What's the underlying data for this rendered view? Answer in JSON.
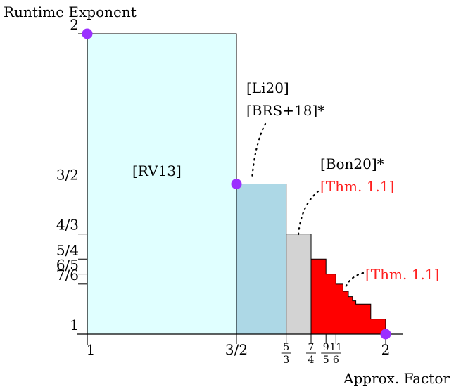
{
  "chart_data": {
    "type": "step-area",
    "ylabel": "Runtime Exponent",
    "xlabel": "Approx. Factor",
    "xlim": [
      1,
      2
    ],
    "ylim": [
      1,
      2
    ],
    "x_ticks": [
      {
        "value": 1,
        "label": "1",
        "kind": "plain"
      },
      {
        "value": 1.5,
        "label": "3/2",
        "kind": "plain"
      },
      {
        "value": 1.6667,
        "num": "5",
        "den": "3",
        "kind": "frac"
      },
      {
        "value": 1.75,
        "num": "7",
        "den": "4",
        "kind": "frac"
      },
      {
        "value": 1.8,
        "num": "9",
        "den": "5",
        "kind": "frac"
      },
      {
        "value": 1.8333,
        "num": "11",
        "den": "6",
        "kind": "frac"
      },
      {
        "value": 2,
        "label": "2",
        "kind": "plain"
      }
    ],
    "y_ticks": [
      {
        "value": 2,
        "label": "2"
      },
      {
        "value": 1.5,
        "label": "3/2"
      },
      {
        "value": 1.3333,
        "label": "4/3"
      },
      {
        "value": 1.25,
        "label": "5/4"
      },
      {
        "value": 1.2,
        "label": "6/5"
      },
      {
        "value": 1.1667,
        "label": "7/6"
      },
      {
        "value": 1,
        "label": "1"
      }
    ],
    "regions": [
      {
        "from": 1,
        "to": 1.5,
        "height": 2,
        "color": "#e0ffff",
        "label": "[RV13]"
      },
      {
        "from": 1.5,
        "to": 1.6667,
        "height": 1.5,
        "color": "#add8e6"
      },
      {
        "from": 1.6667,
        "to": 1.75,
        "height": 1.3333,
        "color": "#d3d3d3"
      },
      {
        "from": 1.75,
        "to": 2,
        "color": "#ff0000",
        "steps": [
          [
            1.75,
            1.25
          ],
          [
            1.8,
            1.2
          ],
          [
            1.8333,
            1.1667
          ],
          [
            1.857,
            1.1429
          ],
          [
            1.875,
            1.125
          ],
          [
            1.889,
            1.111
          ],
          [
            1.9,
            1.1
          ],
          [
            1.95,
            1.05
          ],
          [
            2,
            1
          ]
        ]
      }
    ],
    "points": [
      {
        "x": 1,
        "y": 2,
        "color": "#9b30ff"
      },
      {
        "x": 1.5,
        "y": 1.5,
        "color": "#9b30ff"
      },
      {
        "x": 2,
        "y": 1,
        "color": "#9b30ff"
      }
    ],
    "annotations": {
      "li20": "[Li20]",
      "brs18": "[BRS+18]*",
      "bon20": "[Bon20]*",
      "thm_a": "[Thm. 1.1]",
      "thm_b": "[Thm. 1.1]"
    },
    "colors": {
      "highlight": "#ff2020",
      "outline": "#000000"
    }
  }
}
